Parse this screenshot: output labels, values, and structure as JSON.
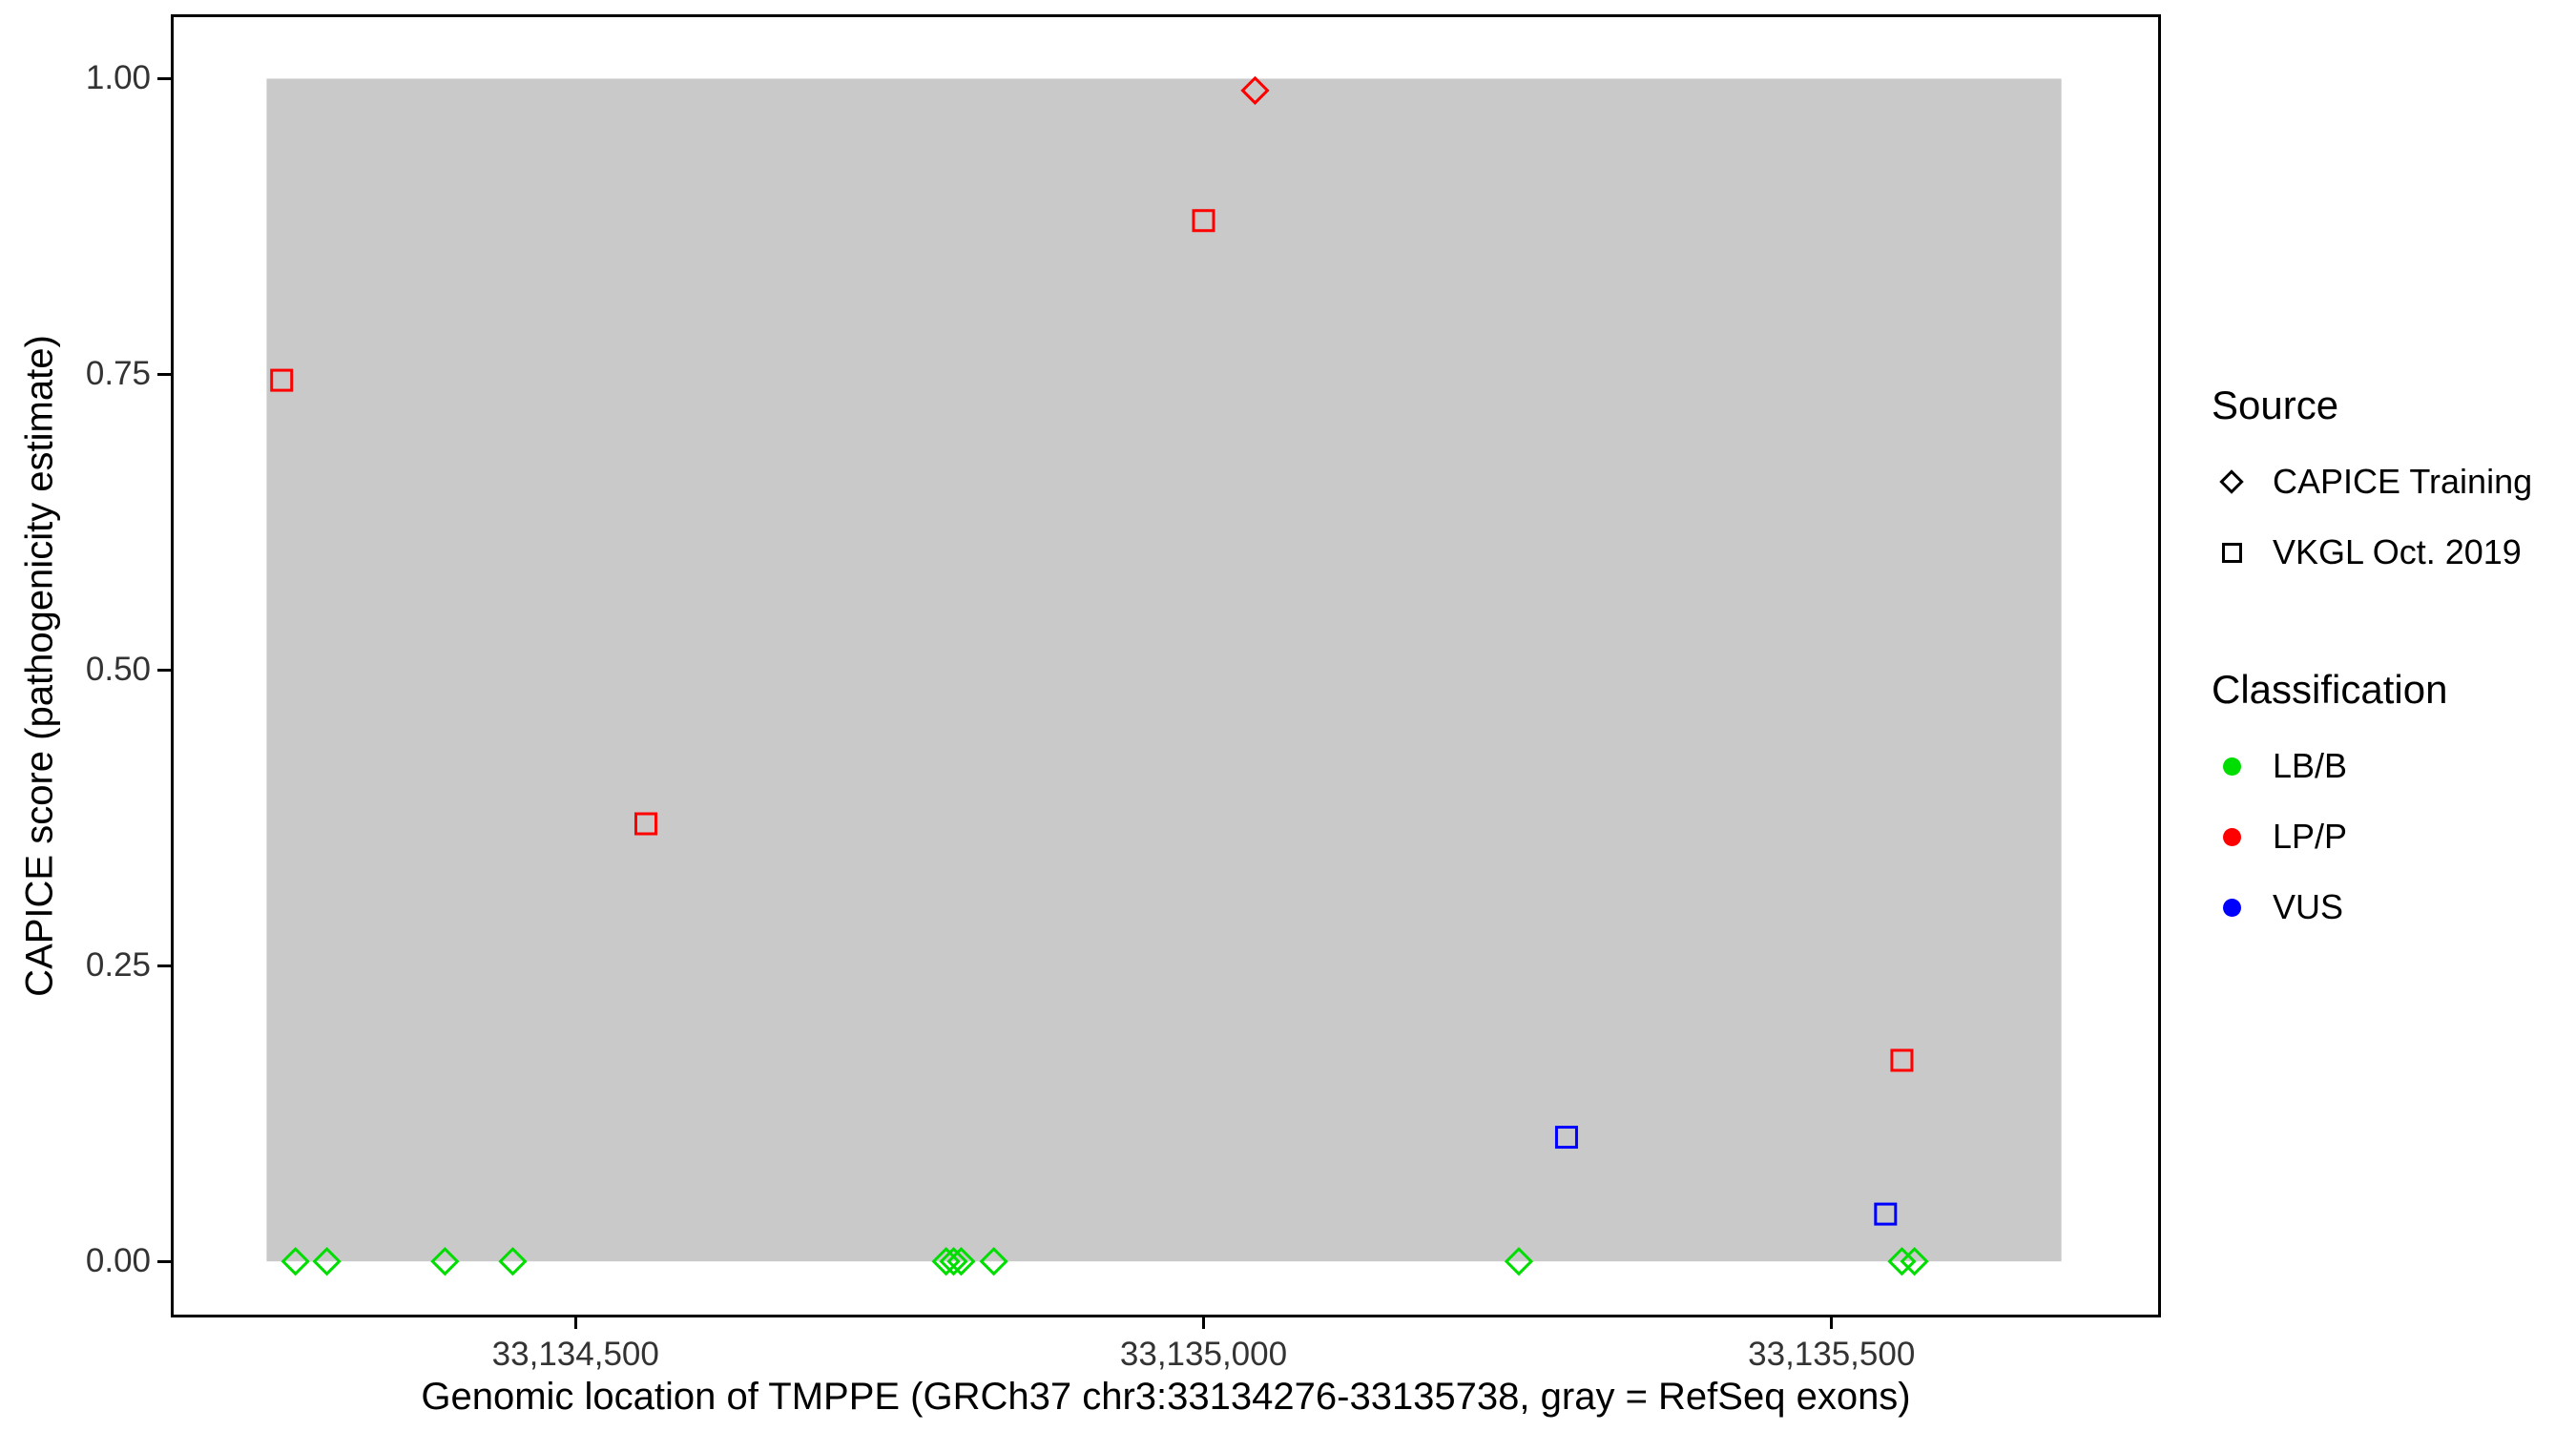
{
  "chart_data": {
    "type": "scatter",
    "title": "",
    "xlabel": "Genomic location of TMPPE (GRCh37 chr3:33134276-33135738, gray = RefSeq exons)",
    "ylabel": "CAPICE score (pathogenicity estimate)",
    "xlim": [
      33134180,
      33135760
    ],
    "ylim": [
      -0.045,
      1.052
    ],
    "grid": false,
    "legend_position": "right",
    "x_ticks": [
      {
        "value": 33134500,
        "label": "33,134,500"
      },
      {
        "value": 33135000,
        "label": "33,135,000"
      },
      {
        "value": 33135500,
        "label": "33,135,500"
      }
    ],
    "y_ticks": [
      {
        "value": 0,
        "label": "0.00"
      },
      {
        "value": 0.25,
        "label": "0.25"
      },
      {
        "value": 0.5,
        "label": "0.50"
      },
      {
        "value": 0.75,
        "label": "0.75"
      },
      {
        "value": 1,
        "label": "1.00"
      }
    ],
    "gray_region": {
      "label": "RefSeq exons",
      "x_start": 33134254,
      "x_end": 33135683,
      "y_start": 0,
      "y_end": 1,
      "color": "#c9c9c9"
    },
    "series": [
      {
        "source": "CAPICE Training",
        "classification": "LP/P",
        "shape": "diamond",
        "color": "#ff0000",
        "points": [
          [
            33135041,
            0.99
          ]
        ]
      },
      {
        "source": "CAPICE Training",
        "classification": "LB/B",
        "shape": "diamond",
        "color": "#00dd00",
        "points": [
          [
            33134277,
            0
          ],
          [
            33134302,
            0
          ],
          [
            33134396,
            0
          ],
          [
            33134450,
            0
          ],
          [
            33134795,
            0
          ],
          [
            33134801,
            0
          ],
          [
            33134807,
            0
          ],
          [
            33134833,
            0
          ],
          [
            33135251,
            0
          ],
          [
            33135556,
            0
          ],
          [
            33135566,
            0
          ]
        ]
      },
      {
        "source": "VKGL Oct. 2019",
        "classification": "LP/P",
        "shape": "square",
        "color": "#ff0000",
        "points": [
          [
            33134266,
            0.745
          ],
          [
            33134556,
            0.37
          ],
          [
            33135000,
            0.88
          ],
          [
            33135556,
            0.17
          ]
        ]
      },
      {
        "source": "VKGL Oct. 2019",
        "classification": "VUS",
        "shape": "square",
        "color": "#0000ff",
        "points": [
          [
            33135289,
            0.105
          ],
          [
            33135543,
            0.04
          ]
        ]
      }
    ]
  },
  "legend": {
    "source": {
      "title": "Source",
      "items": [
        {
          "label": "CAPICE Training",
          "shape": "diamond"
        },
        {
          "label": "VKGL Oct. 2019",
          "shape": "square"
        }
      ]
    },
    "classification": {
      "title": "Classification",
      "items": [
        {
          "label": "LB/B",
          "color": "#00dd00"
        },
        {
          "label": "LP/P",
          "color": "#ff0000"
        },
        {
          "label": "VUS",
          "color": "#0000ff"
        }
      ]
    }
  }
}
